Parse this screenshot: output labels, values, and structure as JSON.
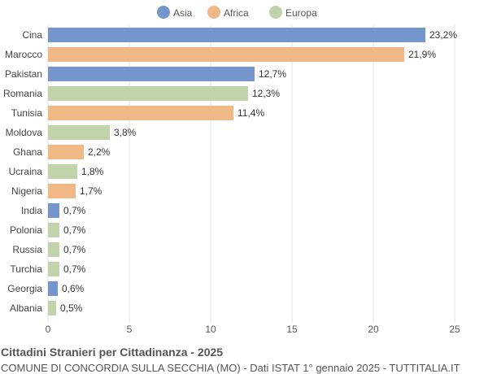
{
  "chart_data": {
    "type": "bar",
    "orientation": "horizontal",
    "title": "Cittadini Stranieri per Cittadinanza - 2025",
    "subtitle": "COMUNE DI CONCORDIA SULLA SECCHIA (MO) - Dati ISTAT 1° gennaio 2025 - TUTTITALIA.IT",
    "legend": {
      "position": "top",
      "entries": [
        {
          "name": "Asia",
          "color": "#7595cd"
        },
        {
          "name": "Africa",
          "color": "#f0b884"
        },
        {
          "name": "Europa",
          "color": "#c0d3ab"
        }
      ]
    },
    "categories": [
      "Cina",
      "Marocco",
      "Pakistan",
      "Romania",
      "Tunisia",
      "Moldova",
      "Ghana",
      "Ucraina",
      "Nigeria",
      "India",
      "Polonia",
      "Russia",
      "Turchia",
      "Georgia",
      "Albania"
    ],
    "values": [
      23.2,
      21.9,
      12.7,
      12.3,
      11.4,
      3.8,
      2.2,
      1.8,
      1.7,
      0.7,
      0.7,
      0.7,
      0.7,
      0.6,
      0.5
    ],
    "labels": [
      "23,2%",
      "21,9%",
      "12,7%",
      "12,3%",
      "11,4%",
      "3,8%",
      "2,2%",
      "1,8%",
      "1,7%",
      "0,7%",
      "0,7%",
      "0,7%",
      "0,7%",
      "0,6%",
      "0,5%"
    ],
    "groups": [
      "Asia",
      "Africa",
      "Asia",
      "Europa",
      "Africa",
      "Europa",
      "Africa",
      "Europa",
      "Africa",
      "Asia",
      "Europa",
      "Europa",
      "Europa",
      "Asia",
      "Europa"
    ],
    "xlim": [
      0,
      25
    ],
    "xticks": [
      "0",
      "5",
      "10",
      "15",
      "20",
      "25"
    ],
    "grid": true
  }
}
